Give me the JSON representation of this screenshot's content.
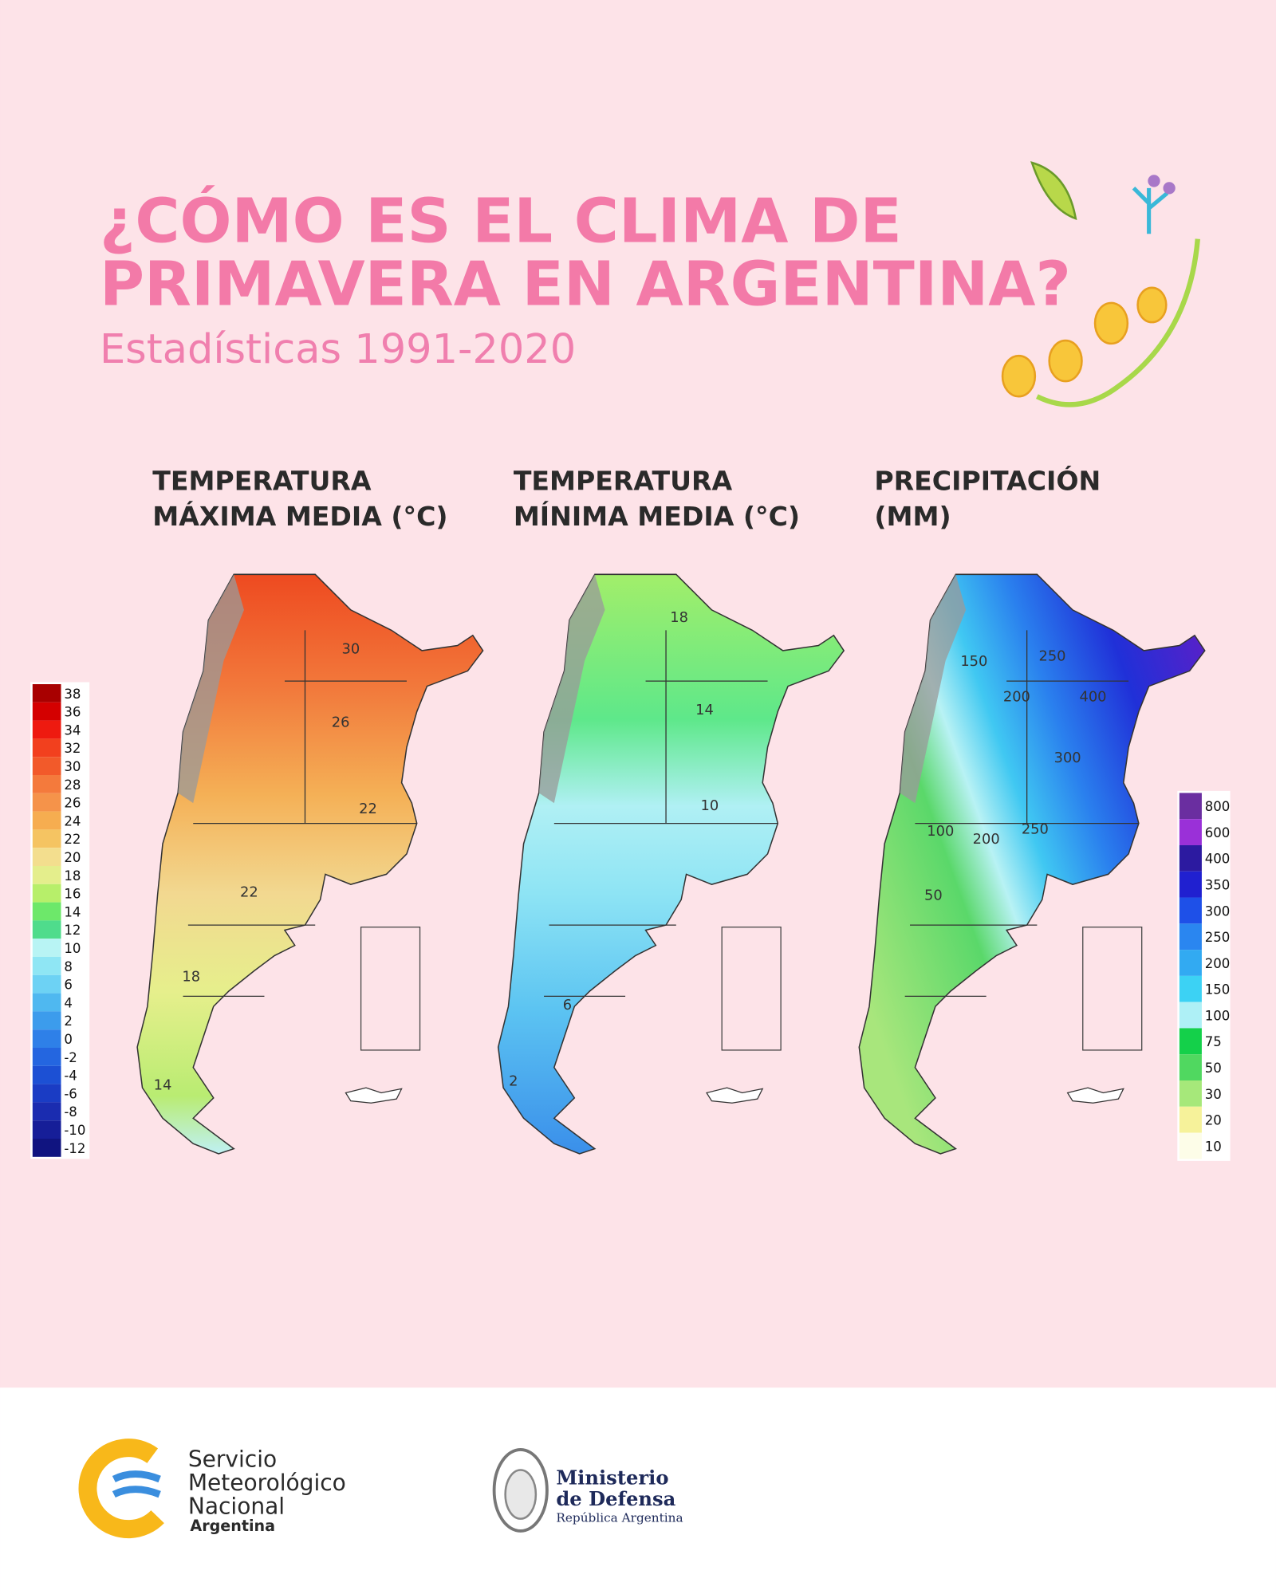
{
  "header": {
    "title_lines": [
      "¿CÓMO ES EL CLIMA DE",
      "PRIMAVERA EN ARGENTINA?"
    ],
    "subtitle": "Estadísticas 1991-2020"
  },
  "maps": [
    {
      "title_lines": [
        "TEMPERATURA",
        "MÁXIMA MEDIA (°C)"
      ],
      "contours": [
        "30",
        "26",
        "22",
        "22",
        "18",
        "14"
      ]
    },
    {
      "title_lines": [
        "TEMPERATURA",
        "MÍNIMA MEDIA (°C)"
      ],
      "contours": [
        "18",
        "14",
        "10",
        "6",
        "2"
      ]
    },
    {
      "title_lines": [
        "PRECIPITACIÓN",
        "(MM)"
      ],
      "contours": [
        "150",
        "250",
        "200",
        "400",
        "300",
        "250",
        "100",
        "200",
        "50"
      ]
    }
  ],
  "legends": {
    "temperature": [
      {
        "value": 38,
        "color": "#a80000"
      },
      {
        "value": 36,
        "color": "#d40000"
      },
      {
        "value": 34,
        "color": "#ee1a10"
      },
      {
        "value": 32,
        "color": "#f2401e"
      },
      {
        "value": 30,
        "color": "#f25a2a"
      },
      {
        "value": 28,
        "color": "#f47a3c"
      },
      {
        "value": 26,
        "color": "#f5934a"
      },
      {
        "value": 24,
        "color": "#f6ad50"
      },
      {
        "value": 22,
        "color": "#f5c462"
      },
      {
        "value": 20,
        "color": "#f3de8e"
      },
      {
        "value": 18,
        "color": "#e4ee8c"
      },
      {
        "value": 16,
        "color": "#b7ef6a"
      },
      {
        "value": 14,
        "color": "#6de86a"
      },
      {
        "value": 12,
        "color": "#4fdc8c"
      },
      {
        "value": 10,
        "color": "#b8f4f4"
      },
      {
        "value": 8,
        "color": "#8fe6f4"
      },
      {
        "value": 6,
        "color": "#6dd2f4"
      },
      {
        "value": 4,
        "color": "#4fb8f0"
      },
      {
        "value": 2,
        "color": "#3c9cec"
      },
      {
        "value": 0,
        "color": "#2e80e8"
      },
      {
        "value": -2,
        "color": "#2466e0"
      },
      {
        "value": -4,
        "color": "#1c50d4"
      },
      {
        "value": -6,
        "color": "#1a3cc4"
      },
      {
        "value": -8,
        "color": "#1a2cb0"
      },
      {
        "value": -10,
        "color": "#161e98"
      },
      {
        "value": -12,
        "color": "#101480"
      }
    ],
    "precipitation": [
      {
        "value": 800,
        "color": "#6a2ea0"
      },
      {
        "value": 600,
        "color": "#9a30d8"
      },
      {
        "value": 400,
        "color": "#2c1aa0"
      },
      {
        "value": 350,
        "color": "#2020d0"
      },
      {
        "value": 300,
        "color": "#1e50e8"
      },
      {
        "value": 250,
        "color": "#2a86f0"
      },
      {
        "value": 200,
        "color": "#32aaf2"
      },
      {
        "value": 150,
        "color": "#3cd2f4"
      },
      {
        "value": 100,
        "color": "#aef0f6"
      },
      {
        "value": 75,
        "color": "#14d04a"
      },
      {
        "value": 50,
        "color": "#50d860"
      },
      {
        "value": 30,
        "color": "#a6e87a"
      },
      {
        "value": 20,
        "color": "#f6f29a"
      },
      {
        "value": 10,
        "color": "#fdfde8"
      }
    ]
  },
  "footer": {
    "smn": [
      "Servicio",
      "Meteorológico",
      "Nacional",
      "Argentina"
    ],
    "ministerio": [
      "Ministerio",
      "de Defensa",
      "República Argentina"
    ]
  }
}
